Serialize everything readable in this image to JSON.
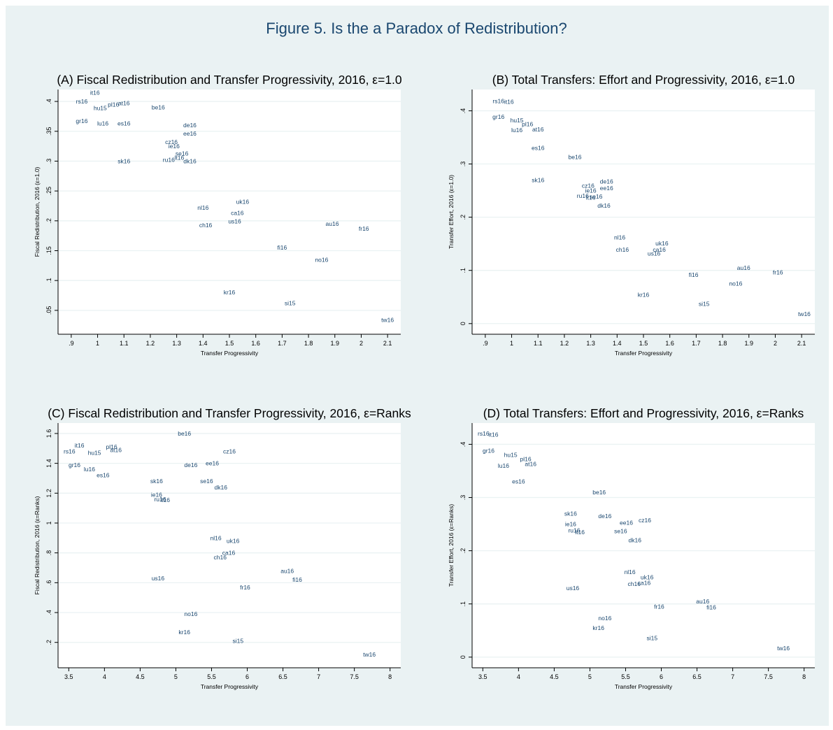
{
  "figure_title": "Figure 5. Is the a Paradox of Redistribution?",
  "colors": {
    "background": "#eaf2f3",
    "plot_area": "#ffffff",
    "label": "#1a476f",
    "grid": "#eaf2f3",
    "axis": "#000000"
  },
  "chart_data": [
    {
      "type": "scatter",
      "title": "(A) Fiscal Redistribution and Transfer Progressivity, 2016, ε=1.0",
      "xlabel": "Transfer Progressivity",
      "ylabel": "Fiscal Redistribution, 2016 (ε=1.0)",
      "xlim": [
        0.85,
        2.15
      ],
      "ylim": [
        0.01,
        0.42
      ],
      "xticks": [
        0.9,
        1,
        1.1,
        1.2,
        1.3,
        1.4,
        1.5,
        1.6,
        1.7,
        1.8,
        1.9,
        2,
        2.1
      ],
      "xtick_labels": [
        ".9",
        "1",
        "1.1",
        "1.2",
        "1.3",
        "1.4",
        "1.5",
        "1.6",
        "1.7",
        "1.8",
        "1.9",
        "2",
        "2.1"
      ],
      "yticks": [
        0.05,
        0.1,
        0.15,
        0.2,
        0.25,
        0.3,
        0.35,
        0.4
      ],
      "ytick_labels": [
        ".05",
        ".1",
        ".15",
        ".2",
        ".25",
        ".3",
        ".35",
        ".4"
      ],
      "grid": true,
      "points": [
        {
          "label": "it16",
          "x": 0.99,
          "y": 0.415
        },
        {
          "label": "rs16",
          "x": 0.94,
          "y": 0.4
        },
        {
          "label": "pl16",
          "x": 1.06,
          "y": 0.395
        },
        {
          "label": "at16",
          "x": 1.1,
          "y": 0.397
        },
        {
          "label": "hu15",
          "x": 1.01,
          "y": 0.389
        },
        {
          "label": "be16",
          "x": 1.23,
          "y": 0.39
        },
        {
          "label": "gr16",
          "x": 0.94,
          "y": 0.367
        },
        {
          "label": "lu16",
          "x": 1.02,
          "y": 0.363
        },
        {
          "label": "es16",
          "x": 1.1,
          "y": 0.363
        },
        {
          "label": "de16",
          "x": 1.35,
          "y": 0.36
        },
        {
          "label": "ee16",
          "x": 1.35,
          "y": 0.346
        },
        {
          "label": "cz16",
          "x": 1.28,
          "y": 0.332
        },
        {
          "label": "ie16",
          "x": 1.29,
          "y": 0.325
        },
        {
          "label": "se16",
          "x": 1.32,
          "y": 0.313
        },
        {
          "label": "lt16",
          "x": 1.31,
          "y": 0.306
        },
        {
          "label": "ru16",
          "x": 1.27,
          "y": 0.302
        },
        {
          "label": "dk16",
          "x": 1.35,
          "y": 0.3
        },
        {
          "label": "sk16",
          "x": 1.1,
          "y": 0.3
        },
        {
          "label": "uk16",
          "x": 1.55,
          "y": 0.232
        },
        {
          "label": "nl16",
          "x": 1.4,
          "y": 0.222
        },
        {
          "label": "ca16",
          "x": 1.53,
          "y": 0.213
        },
        {
          "label": "us16",
          "x": 1.52,
          "y": 0.199
        },
        {
          "label": "au16",
          "x": 1.89,
          "y": 0.195
        },
        {
          "label": "ch16",
          "x": 1.41,
          "y": 0.193
        },
        {
          "label": "fr16",
          "x": 2.01,
          "y": 0.187
        },
        {
          "label": "fi16",
          "x": 1.7,
          "y": 0.155
        },
        {
          "label": "no16",
          "x": 1.85,
          "y": 0.135
        },
        {
          "label": "kr16",
          "x": 1.5,
          "y": 0.08
        },
        {
          "label": "si15",
          "x": 1.73,
          "y": 0.062
        },
        {
          "label": "tw16",
          "x": 2.1,
          "y": 0.034
        }
      ]
    },
    {
      "type": "scatter",
      "title": "(B) Total Transfers: Effort and Progressivity, 2016, ε=1.0",
      "xlabel": "Transfer Progressivity",
      "ylabel": "Transfer Effort, 2016 (ε=1.0)",
      "xlim": [
        0.85,
        2.15
      ],
      "ylim": [
        -0.02,
        0.44
      ],
      "xticks": [
        0.9,
        1,
        1.1,
        1.2,
        1.3,
        1.4,
        1.5,
        1.6,
        1.7,
        1.8,
        1.9,
        2,
        2.1
      ],
      "xtick_labels": [
        ".9",
        "1",
        "1.1",
        "1.2",
        "1.3",
        "1.4",
        "1.5",
        "1.6",
        "1.7",
        "1.8",
        "1.9",
        "2",
        "2.1"
      ],
      "yticks": [
        0,
        0.1,
        0.2,
        0.3,
        0.4
      ],
      "ytick_labels": [
        "0",
        ".1",
        ".2",
        ".3",
        ".4"
      ],
      "grid": true,
      "points": [
        {
          "label": "rs16",
          "x": 0.95,
          "y": 0.418
        },
        {
          "label": "it16",
          "x": 0.99,
          "y": 0.417
        },
        {
          "label": "gr16",
          "x": 0.95,
          "y": 0.389
        },
        {
          "label": "hu15",
          "x": 1.02,
          "y": 0.382
        },
        {
          "label": "pl16",
          "x": 1.06,
          "y": 0.375
        },
        {
          "label": "lu16",
          "x": 1.02,
          "y": 0.364
        },
        {
          "label": "at16",
          "x": 1.1,
          "y": 0.365
        },
        {
          "label": "es16",
          "x": 1.1,
          "y": 0.33
        },
        {
          "label": "be16",
          "x": 1.24,
          "y": 0.313
        },
        {
          "label": "sk16",
          "x": 1.1,
          "y": 0.27
        },
        {
          "label": "de16",
          "x": 1.36,
          "y": 0.267
        },
        {
          "label": "cz16",
          "x": 1.29,
          "y": 0.259
        },
        {
          "label": "ee16",
          "x": 1.36,
          "y": 0.255
        },
        {
          "label": "ie16",
          "x": 1.3,
          "y": 0.25
        },
        {
          "label": "ru16",
          "x": 1.27,
          "y": 0.24
        },
        {
          "label": "lt16",
          "x": 1.3,
          "y": 0.237
        },
        {
          "label": "se16",
          "x": 1.32,
          "y": 0.239
        },
        {
          "label": "dk16",
          "x": 1.35,
          "y": 0.222
        },
        {
          "label": "nl16",
          "x": 1.41,
          "y": 0.162
        },
        {
          "label": "uk16",
          "x": 1.57,
          "y": 0.151
        },
        {
          "label": "ch16",
          "x": 1.42,
          "y": 0.139
        },
        {
          "label": "ca16",
          "x": 1.56,
          "y": 0.139
        },
        {
          "label": "us16",
          "x": 1.54,
          "y": 0.132
        },
        {
          "label": "au16",
          "x": 1.88,
          "y": 0.105
        },
        {
          "label": "fr16",
          "x": 2.01,
          "y": 0.096
        },
        {
          "label": "fi16",
          "x": 1.69,
          "y": 0.092
        },
        {
          "label": "no16",
          "x": 1.85,
          "y": 0.075
        },
        {
          "label": "kr16",
          "x": 1.5,
          "y": 0.054
        },
        {
          "label": "si15",
          "x": 1.73,
          "y": 0.037
        },
        {
          "label": "tw16",
          "x": 2.11,
          "y": 0.018
        }
      ]
    },
    {
      "type": "scatter",
      "title": "(C) Fiscal Redistribution and Transfer Progressivity, 2016, ε=Ranks",
      "xlabel": "Transfer Progressivity",
      "ylabel": "Fiscal Redistribution, 2016 (ε=Ranks)",
      "xlim": [
        3.35,
        8.15
      ],
      "ylim": [
        0.03,
        1.67
      ],
      "xticks": [
        3.5,
        4,
        4.5,
        5,
        5.5,
        6,
        6.5,
        7,
        7.5,
        8
      ],
      "xtick_labels": [
        "3.5",
        "4",
        "4.5",
        "5",
        "5.5",
        "6",
        "6.5",
        "7",
        "7.5",
        "8"
      ],
      "yticks": [
        0.2,
        0.4,
        0.6,
        0.8,
        1,
        1.2,
        1.4,
        1.6
      ],
      "ytick_labels": [
        ".2",
        ".4",
        ".6",
        ".8",
        "1",
        "1.2",
        "1.4",
        "1.6"
      ],
      "grid": true,
      "points": [
        {
          "label": "be16",
          "x": 5.12,
          "y": 1.6
        },
        {
          "label": "it16",
          "x": 3.65,
          "y": 1.52
        },
        {
          "label": "pl16",
          "x": 4.1,
          "y": 1.51
        },
        {
          "label": "at16",
          "x": 4.16,
          "y": 1.49
        },
        {
          "label": "rs16",
          "x": 3.51,
          "y": 1.48
        },
        {
          "label": "cz16",
          "x": 5.75,
          "y": 1.48
        },
        {
          "label": "hu15",
          "x": 3.86,
          "y": 1.47
        },
        {
          "label": "gr16",
          "x": 3.58,
          "y": 1.39
        },
        {
          "label": "ee16",
          "x": 5.51,
          "y": 1.4
        },
        {
          "label": "de16",
          "x": 5.21,
          "y": 1.39
        },
        {
          "label": "lu16",
          "x": 3.79,
          "y": 1.36
        },
        {
          "label": "es16",
          "x": 3.98,
          "y": 1.32
        },
        {
          "label": "sk16",
          "x": 4.73,
          "y": 1.28
        },
        {
          "label": "se16",
          "x": 5.43,
          "y": 1.28
        },
        {
          "label": "dk16",
          "x": 5.63,
          "y": 1.24
        },
        {
          "label": "ie16",
          "x": 4.73,
          "y": 1.19
        },
        {
          "label": "ru16",
          "x": 4.78,
          "y": 1.16
        },
        {
          "label": "lt16",
          "x": 4.85,
          "y": 1.155
        },
        {
          "label": "nl16",
          "x": 5.56,
          "y": 0.9
        },
        {
          "label": "uk16",
          "x": 5.8,
          "y": 0.88
        },
        {
          "label": "ca16",
          "x": 5.74,
          "y": 0.8
        },
        {
          "label": "ch16",
          "x": 5.62,
          "y": 0.77
        },
        {
          "label": "au16",
          "x": 6.56,
          "y": 0.68
        },
        {
          "label": "us16",
          "x": 4.75,
          "y": 0.63
        },
        {
          "label": "fi16",
          "x": 6.7,
          "y": 0.62
        },
        {
          "label": "fr16",
          "x": 5.97,
          "y": 0.57
        },
        {
          "label": "no16",
          "x": 5.21,
          "y": 0.39
        },
        {
          "label": "kr16",
          "x": 5.12,
          "y": 0.27
        },
        {
          "label": "si15",
          "x": 5.87,
          "y": 0.21
        },
        {
          "label": "tw16",
          "x": 7.71,
          "y": 0.12
        }
      ]
    },
    {
      "type": "scatter",
      "title": "(D) Total Transfers: Effort and Progressivity, 2016, ε=Ranks",
      "xlabel": "Transfer Progressivity",
      "ylabel": "Transfer Effort, 2016 (ε=Ranks)",
      "xlim": [
        3.35,
        8.15
      ],
      "ylim": [
        -0.02,
        0.44
      ],
      "xticks": [
        3.5,
        4,
        4.5,
        5,
        5.5,
        6,
        6.5,
        7,
        7.5,
        8
      ],
      "xtick_labels": [
        "3.5",
        "4",
        "4.5",
        "5",
        "5.5",
        "6",
        "6.5",
        "7",
        "7.5",
        "8"
      ],
      "yticks": [
        0,
        0.1,
        0.2,
        0.3,
        0.4
      ],
      "ytick_labels": [
        "0",
        ".1",
        ".2",
        ".3",
        ".4"
      ],
      "grid": true,
      "points": [
        {
          "label": "rs16",
          "x": 3.51,
          "y": 0.42
        },
        {
          "label": "it16",
          "x": 3.65,
          "y": 0.418
        },
        {
          "label": "gr16",
          "x": 3.58,
          "y": 0.388
        },
        {
          "label": "hu15",
          "x": 3.89,
          "y": 0.38
        },
        {
          "label": "pl16",
          "x": 4.1,
          "y": 0.372
        },
        {
          "label": "lu16",
          "x": 3.79,
          "y": 0.36
        },
        {
          "label": "at16",
          "x": 4.17,
          "y": 0.363
        },
        {
          "label": "es16",
          "x": 4.0,
          "y": 0.33
        },
        {
          "label": "be16",
          "x": 5.13,
          "y": 0.31
        },
        {
          "label": "sk16",
          "x": 4.73,
          "y": 0.27
        },
        {
          "label": "de16",
          "x": 5.21,
          "y": 0.265
        },
        {
          "label": "cz16",
          "x": 5.77,
          "y": 0.257
        },
        {
          "label": "ee16",
          "x": 5.51,
          "y": 0.253
        },
        {
          "label": "ie16",
          "x": 4.73,
          "y": 0.25
        },
        {
          "label": "ru16",
          "x": 4.78,
          "y": 0.238
        },
        {
          "label": "lt16",
          "x": 4.86,
          "y": 0.235
        },
        {
          "label": "se16",
          "x": 5.43,
          "y": 0.237
        },
        {
          "label": "dk16",
          "x": 5.63,
          "y": 0.22
        },
        {
          "label": "nl16",
          "x": 5.56,
          "y": 0.16
        },
        {
          "label": "uk16",
          "x": 5.8,
          "y": 0.15
        },
        {
          "label": "ch16",
          "x": 5.62,
          "y": 0.138
        },
        {
          "label": "ca16",
          "x": 5.76,
          "y": 0.14
        },
        {
          "label": "us16",
          "x": 4.76,
          "y": 0.13
        },
        {
          "label": "au16",
          "x": 6.58,
          "y": 0.105
        },
        {
          "label": "fr16",
          "x": 5.97,
          "y": 0.095
        },
        {
          "label": "fi16",
          "x": 6.7,
          "y": 0.094
        },
        {
          "label": "no16",
          "x": 5.21,
          "y": 0.073
        },
        {
          "label": "kr16",
          "x": 5.12,
          "y": 0.055
        },
        {
          "label": "si15",
          "x": 5.87,
          "y": 0.036
        },
        {
          "label": "tw16",
          "x": 7.71,
          "y": 0.017
        }
      ]
    }
  ]
}
